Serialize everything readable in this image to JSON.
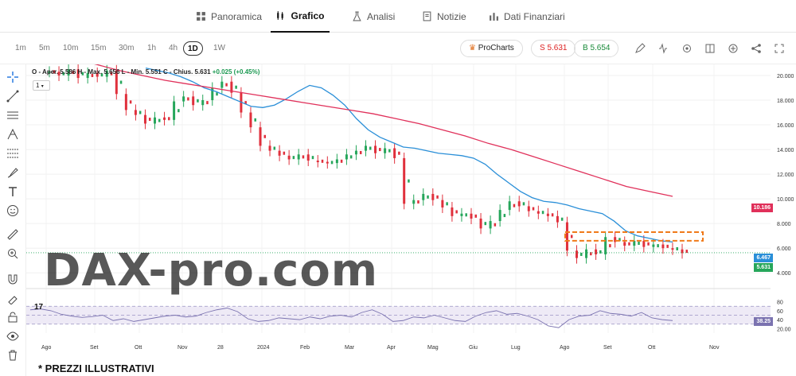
{
  "tabs": [
    {
      "label": "Panoramica",
      "icon": "grid-icon"
    },
    {
      "label": "Grafico",
      "icon": "candles-icon"
    },
    {
      "label": "Analisi",
      "icon": "flask-icon"
    },
    {
      "label": "Notizie",
      "icon": "document-icon"
    },
    {
      "label": "Dati Finanziari",
      "icon": "bar-chart-icon"
    }
  ],
  "timeframes": [
    "1m",
    "5m",
    "10m",
    "15m",
    "30m",
    "1h",
    "4h",
    "1D",
    "1W"
  ],
  "active_timeframe": "1D",
  "procharts_label": "ProCharts",
  "sell_label": "S 5.631",
  "buy_label": "B 5.654",
  "legend": {
    "ohlc": "O - Aper. 5.586  H - Max. 5.656  L - Min. 5.551  C - Chius. 5.631",
    "change": "+0.025 (+0.45%)"
  },
  "interval_box": "1",
  "watermark": "DAX-pro.com",
  "footnote": "* PREZZI ILLUSTRATIVI",
  "colors": {
    "up": "#26a65b",
    "down": "#e0303c",
    "ma_slow": "#e0305a",
    "ma_fast": "#2a8fd8",
    "rsi": "#7b73b0",
    "zone": "#f07a1a"
  },
  "chart_data": {
    "type": "line",
    "y_ticks": [
      "20.000",
      "18.000",
      "16.000",
      "14.000",
      "12.000",
      "10.000",
      "8.000",
      "6.000",
      "4.000"
    ],
    "x_ticks": [
      "Ago",
      "Set",
      "Ott",
      "Nov",
      "28",
      "2024",
      "Feb",
      "Mar",
      "Apr",
      "Mag",
      "Giu",
      "Lug",
      "Ago",
      "Set",
      "Ott",
      "Nov"
    ],
    "last_labels": {
      "ma_slow": "10.186",
      "ma_fast": "6.467",
      "price": "5.631"
    },
    "rsi_ticks": [
      "80",
      "60",
      "40",
      "20.00"
    ],
    "rsi_last": "38.25",
    "price": [
      20.3,
      20.0,
      20.5,
      19.8,
      20.2,
      19.9,
      20.4,
      18.5,
      17.2,
      16.8,
      16.1,
      16.6,
      16.4,
      17.9,
      18.3,
      17.6,
      18.0,
      19.0,
      19.5,
      18.6,
      17.0,
      15.8,
      14.3,
      13.9,
      13.5,
      13.2,
      13.6,
      13.1,
      13.0,
      12.9,
      13.2,
      13.6,
      13.9,
      14.3,
      13.7,
      14.1,
      13.3,
      9.6,
      9.9,
      10.4,
      9.9,
      9.3,
      8.6,
      8.8,
      8.4,
      7.6,
      8.2,
      9.1,
      9.8,
      9.4,
      9.0,
      8.8,
      8.6,
      8.1,
      5.8,
      5.2,
      5.9,
      5.5,
      6.9,
      6.5,
      6.2,
      6.6,
      6.1,
      6.3,
      6.0,
      5.9,
      5.6
    ],
    "ma_fast": [
      20.6,
      20.4,
      20.2,
      19.9,
      19.5,
      19.0,
      18.7,
      18.3,
      17.9,
      17.5,
      17.4,
      17.6,
      18.1,
      18.7,
      19.2,
      19.0,
      18.4,
      17.6,
      16.5,
      15.6,
      15.0,
      14.6,
      14.2,
      14.1,
      13.9,
      13.7,
      13.6,
      13.5,
      13.3,
      12.8,
      12.0,
      11.3,
      10.6,
      10.1,
      9.8,
      9.7,
      9.5,
      9.2,
      9.0,
      8.8,
      8.2,
      7.4,
      7.0,
      6.8,
      6.6,
      6.5
    ],
    "ma_slow": [
      21.8,
      21.4,
      20.9,
      20.4,
      20.0,
      19.6,
      19.3,
      19.0,
      18.7,
      18.4,
      18.1,
      17.8,
      17.5,
      17.2,
      16.9,
      16.5,
      16.1,
      15.6,
      15.1,
      14.5,
      14.0,
      13.4,
      12.8,
      12.2,
      11.6,
      11.0,
      10.6,
      10.2
    ],
    "rsi": [
      62,
      64,
      60,
      52,
      48,
      45,
      47,
      50,
      38,
      42,
      36,
      40,
      44,
      48,
      50,
      46,
      48,
      56,
      62,
      66,
      58,
      42,
      36,
      38,
      44,
      42,
      40,
      46,
      42,
      48,
      50,
      46,
      56,
      62,
      52,
      36,
      38,
      46,
      44,
      50,
      44,
      38,
      36,
      48,
      56,
      60,
      52,
      54,
      48,
      40,
      26,
      22,
      40,
      48,
      50,
      60,
      54,
      52,
      48,
      56,
      44,
      40,
      38
    ],
    "zone": {
      "top": 7.3,
      "bottom": 6.6
    }
  }
}
